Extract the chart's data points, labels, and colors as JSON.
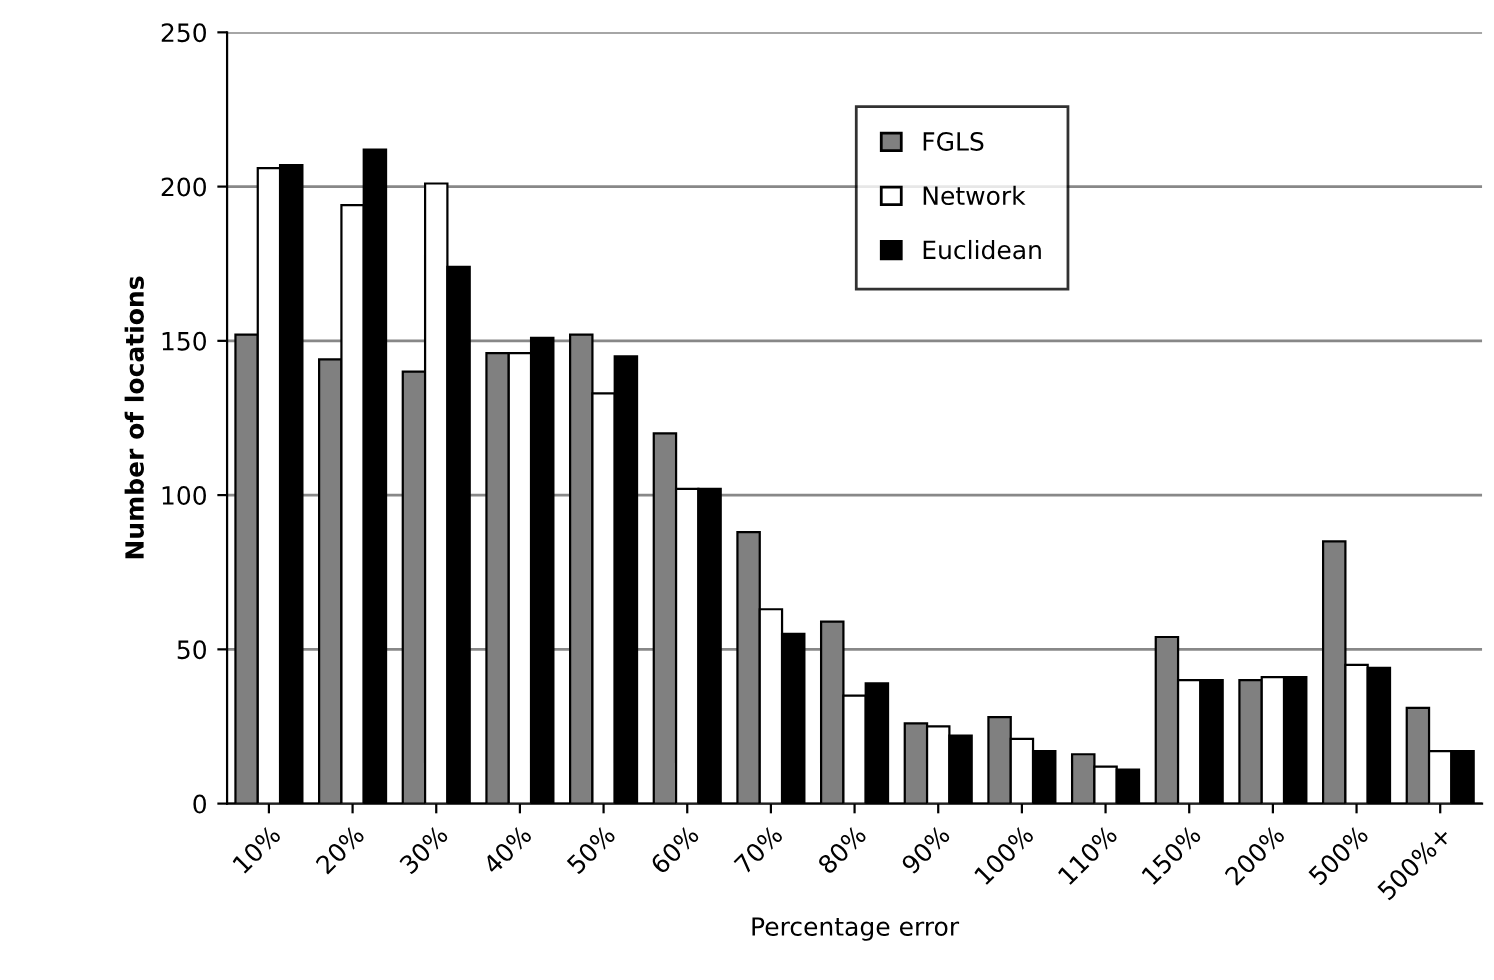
{
  "chart_data": {
    "type": "bar",
    "xlabel": "Percentage error",
    "ylabel": "Number of locations",
    "categories": [
      "10%",
      "20%",
      "30%",
      "40%",
      "50%",
      "60%",
      "70%",
      "80%",
      "90%",
      "100%",
      "110%",
      "150%",
      "200%",
      "500%",
      "500%+"
    ],
    "series": [
      {
        "name": "FGLS",
        "color": "#808080",
        "values": [
          152,
          144,
          140,
          146,
          152,
          120,
          88,
          59,
          26,
          28,
          16,
          54,
          40,
          85,
          31
        ]
      },
      {
        "name": "Network",
        "color": "#ffffff",
        "values": [
          206,
          194,
          201,
          146,
          133,
          102,
          63,
          35,
          25,
          21,
          12,
          40,
          41,
          45,
          17
        ]
      },
      {
        "name": "Euclidean",
        "color": "#000000",
        "values": [
          207,
          212,
          174,
          151,
          145,
          102,
          55,
          39,
          22,
          17,
          11,
          40,
          41,
          44,
          17
        ]
      }
    ],
    "ylim": [
      0,
      250
    ],
    "yticks": [
      0,
      50,
      100,
      150,
      200,
      250
    ],
    "grid": "y",
    "legend": "top right"
  }
}
